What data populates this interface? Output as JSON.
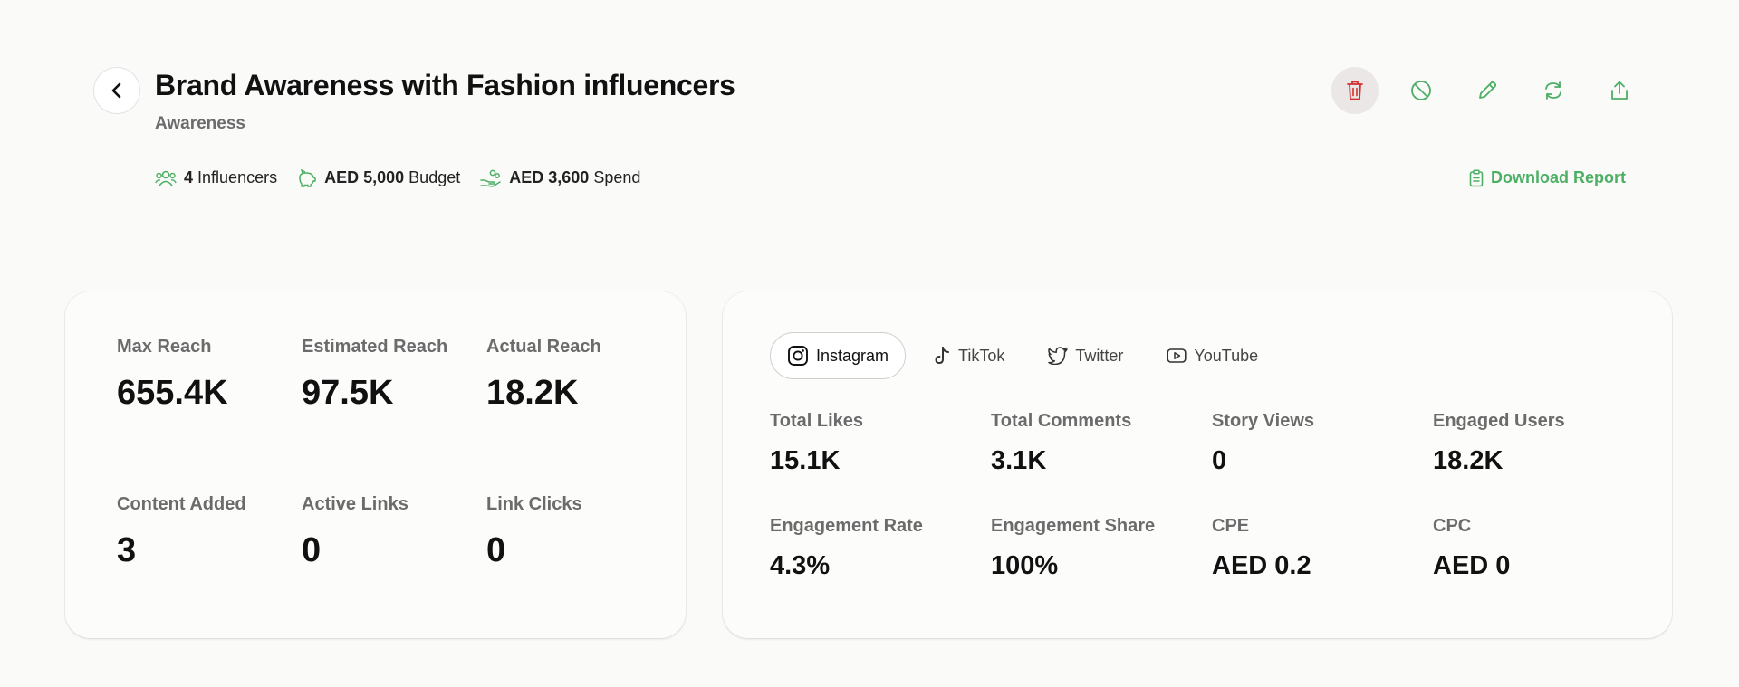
{
  "header": {
    "title": "Brand Awareness with Fashion influencers",
    "subtitle": "Awareness",
    "meta": {
      "influencers_value": "4",
      "influencers_label": "Influencers",
      "budget_value": "AED 5,000",
      "budget_label": "Budget",
      "spend_value": "AED 3,600",
      "spend_label": "Spend"
    },
    "download_label": "Download Report"
  },
  "actions": {
    "icons": [
      "trash-icon",
      "block-icon",
      "pencil-icon",
      "refresh-icon",
      "share-icon"
    ]
  },
  "colors": {
    "accent": "#4caf64",
    "danger": "#d32f2f",
    "muted_text": "#6b6b6b"
  },
  "reach_card": {
    "max_reach_label": "Max Reach",
    "max_reach_value": "655.4K",
    "estimated_reach_label": "Estimated Reach",
    "estimated_reach_value": "97.5K",
    "actual_reach_label": "Actual Reach",
    "actual_reach_value": "18.2K",
    "content_added_label": "Content Added",
    "content_added_value": "3",
    "active_links_label": "Active Links",
    "active_links_value": "0",
    "link_clicks_label": "Link Clicks",
    "link_clicks_value": "0"
  },
  "platform_card": {
    "tabs": [
      {
        "label": "Instagram",
        "icon": "instagram-icon",
        "active": true
      },
      {
        "label": "TikTok",
        "icon": "tiktok-icon",
        "active": false
      },
      {
        "label": "Twitter",
        "icon": "twitter-icon",
        "active": false
      },
      {
        "label": "YouTube",
        "icon": "youtube-icon",
        "active": false
      }
    ],
    "total_likes_label": "Total Likes",
    "total_likes_value": "15.1K",
    "total_comments_label": "Total Comments",
    "total_comments_value": "3.1K",
    "story_views_label": "Story Views",
    "story_views_value": "0",
    "engaged_users_label": "Engaged Users",
    "engaged_users_value": "18.2K",
    "engagement_rate_label": "Engagement Rate",
    "engagement_rate_value": "4.3%",
    "engagement_share_label": "Engagement Share",
    "engagement_share_value": "100%",
    "cpe_label": "CPE",
    "cpe_value": "AED 0.2",
    "cpc_label": "CPC",
    "cpc_value": "AED 0"
  }
}
